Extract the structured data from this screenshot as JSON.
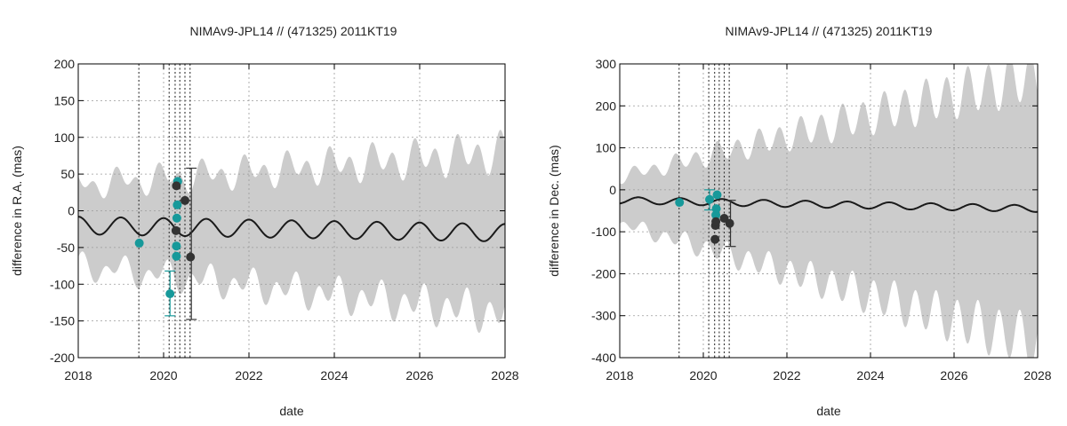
{
  "chart_data": [
    {
      "type": "scatter",
      "title": "NIMAv9-JPL14 // (471325) 2011KT19",
      "xlabel": "date",
      "ylabel": "difference in R.A. (mas)",
      "xlim": [
        2018,
        2028
      ],
      "ylim": [
        -200,
        200
      ],
      "x_ticks": [
        2018,
        2020,
        2022,
        2024,
        2026,
        2028
      ],
      "y_ticks": [
        200,
        150,
        100,
        50,
        0,
        -50,
        -100,
        -150,
        -200
      ],
      "grid": true,
      "vlines": [
        2019.42,
        2020.13,
        2020.27,
        2020.38,
        2020.5,
        2020.62
      ],
      "uncertainty_band": {
        "color": "#cccccc",
        "center": {
          "amplitude": 12,
          "period_years": 1.0,
          "phase_year": 2018.75,
          "trend": [
            [
              2018,
              -20
            ],
            [
              2028,
              -30
            ]
          ]
        },
        "half_width": [
          [
            2018,
            55
          ],
          [
            2028,
            110
          ]
        ],
        "ripple": 0.2
      },
      "model_curve": {
        "color": "#1a1a1a",
        "amplitude": 12,
        "period_years": 1.0,
        "phase_year": 2018.75,
        "trend": [
          [
            2018,
            -20
          ],
          [
            2028,
            -30
          ]
        ]
      },
      "series": [
        {
          "color": "#17999a",
          "points": [
            [
              2019.43,
              -44
            ],
            [
              2020.15,
              -113
            ],
            [
              2020.3,
              -62
            ],
            [
              2020.3,
              -48
            ],
            [
              2020.31,
              -10
            ],
            [
              2020.32,
              8
            ],
            [
              2020.33,
              40
            ]
          ],
          "errorbars": [
            [
              2020.15,
              -143,
              -82
            ]
          ]
        },
        {
          "color": "#333333",
          "points": [
            [
              2020.29,
              -27
            ],
            [
              2020.3,
              34
            ],
            [
              2020.5,
              14
            ],
            [
              2020.63,
              -63
            ]
          ],
          "errorbars": [
            [
              2020.65,
              -148,
              58
            ]
          ]
        }
      ]
    },
    {
      "type": "scatter",
      "title": "NIMAv9-JPL14 // (471325) 2011KT19",
      "xlabel": "date",
      "ylabel": "difference in Dec. (mas)",
      "xlim": [
        2018,
        2028
      ],
      "ylim": [
        -400,
        300
      ],
      "x_ticks": [
        2018,
        2020,
        2022,
        2024,
        2026,
        2028
      ],
      "y_ticks": [
        300,
        200,
        100,
        0,
        -100,
        -200,
        -300,
        -400
      ],
      "grid": true,
      "vlines": [
        2019.42,
        2020.13,
        2020.27,
        2020.38,
        2020.5,
        2020.62
      ],
      "uncertainty_band": {
        "color": "#cccccc",
        "center": {
          "amplitude": 8,
          "period_years": 1.0,
          "phase_year": 2018.2,
          "trend": [
            [
              2018,
              -25
            ],
            [
              2028,
              -45
            ]
          ]
        },
        "half_width": [
          [
            2018,
            55
          ],
          [
            2028,
            320
          ]
        ],
        "ripple": 0.2
      },
      "model_curve": {
        "color": "#1a1a1a",
        "amplitude": 8,
        "period_years": 1.0,
        "phase_year": 2018.2,
        "trend": [
          [
            2018,
            -25
          ],
          [
            2028,
            -45
          ]
        ]
      },
      "series": [
        {
          "color": "#17999a",
          "points": [
            [
              2019.43,
              -30
            ],
            [
              2020.15,
              -23
            ],
            [
              2020.3,
              -60
            ],
            [
              2020.31,
              -45
            ],
            [
              2020.33,
              -12
            ]
          ],
          "errorbars": [
            [
              2020.15,
              -48,
              0
            ]
          ]
        },
        {
          "color": "#333333",
          "points": [
            [
              2020.28,
              -118
            ],
            [
              2020.29,
              -85
            ],
            [
              2020.3,
              -76
            ],
            [
              2020.5,
              -68
            ],
            [
              2020.63,
              -80
            ]
          ],
          "errorbars": [
            [
              2020.65,
              -135,
              -25
            ]
          ]
        }
      ]
    }
  ]
}
